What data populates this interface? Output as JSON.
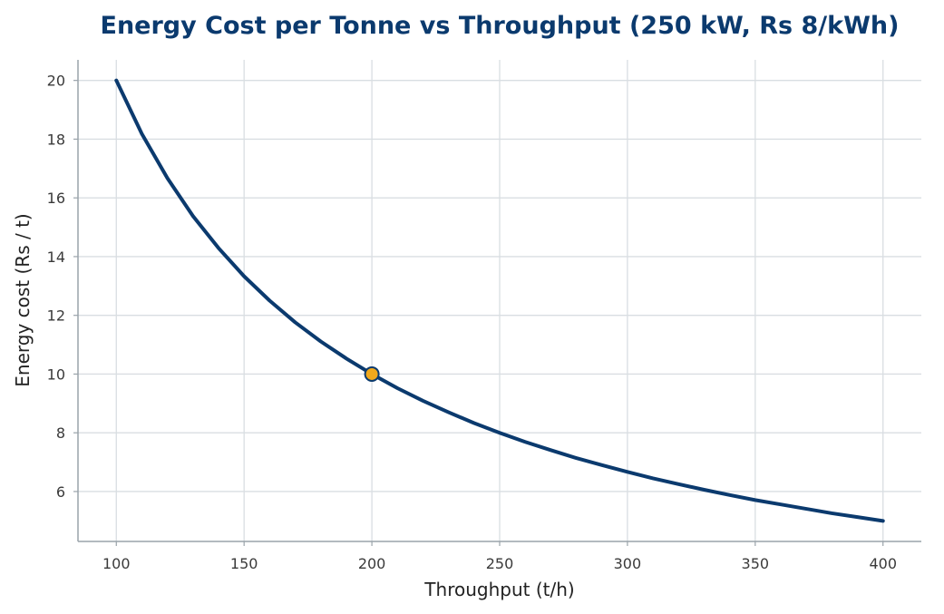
{
  "chart_data": {
    "type": "line",
    "title": "Energy Cost per Tonne vs Throughput (250 kW, Rs 8/kWh)",
    "xlabel": "Throughput (t/h)",
    "ylabel": "Energy cost (Rs / t)",
    "xlim": [
      85,
      415
    ],
    "ylim": [
      4.3,
      20.7
    ],
    "xticks": [
      100,
      150,
      200,
      250,
      300,
      350,
      400
    ],
    "yticks": [
      6,
      8,
      10,
      12,
      14,
      16,
      18,
      20
    ],
    "grid": true,
    "series": [
      {
        "color": "#0b3a6e",
        "x": [
          100,
          110,
          120,
          130,
          140,
          150,
          160,
          170,
          180,
          190,
          200,
          210,
          220,
          230,
          240,
          250,
          260,
          270,
          280,
          290,
          300,
          310,
          320,
          330,
          340,
          350,
          360,
          370,
          380,
          390,
          400
        ],
        "y": [
          20.0,
          18.18,
          16.67,
          15.38,
          14.29,
          13.33,
          12.5,
          11.76,
          11.11,
          10.53,
          10.0,
          9.52,
          9.09,
          8.7,
          8.33,
          8.0,
          7.69,
          7.41,
          7.14,
          6.9,
          6.67,
          6.45,
          6.25,
          6.06,
          5.88,
          5.71,
          5.56,
          5.41,
          5.26,
          5.13,
          5.0
        ]
      }
    ],
    "highlight_point": {
      "x": 200,
      "y": 10.0,
      "color": "#f0a81c",
      "edge_color": "#0b3a6e"
    }
  }
}
